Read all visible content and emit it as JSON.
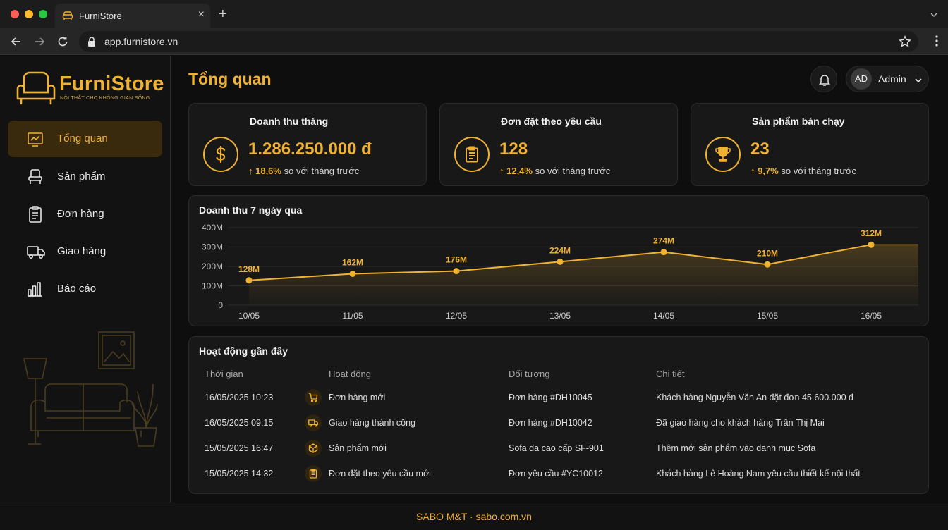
{
  "browser": {
    "tab_title": "FurniStore",
    "tab_close": "×",
    "new_tab": "+",
    "url": "app.furnistore.vn"
  },
  "brand": {
    "name": "FurniStore",
    "tagline": "NỘI THẤT CHO KHÔNG GIAN SỐNG",
    "accent": "#f0b232"
  },
  "sidebar": {
    "items": [
      {
        "label": "Tổng quan",
        "icon": "dashboard-icon",
        "active": true
      },
      {
        "label": "Sản phẩm",
        "icon": "chair-icon"
      },
      {
        "label": "Đơn hàng",
        "icon": "clipboard-icon"
      },
      {
        "label": "Giao hàng",
        "icon": "truck-icon"
      },
      {
        "label": "Báo cáo",
        "icon": "bar-chart-icon"
      }
    ]
  },
  "header": {
    "title": "Tổng quan",
    "user_initials": "AD",
    "user_name": "Admin"
  },
  "stats": [
    {
      "label": "Doanh thu tháng",
      "value": "1.286.250.000 đ",
      "change": "↑ 18,6%",
      "change_text": " so với tháng trước",
      "icon": "dollar-icon"
    },
    {
      "label": "Đơn đặt theo yêu cầu",
      "value": "128",
      "change": "↑ 12,4%",
      "change_text": " so với tháng trước",
      "icon": "clipboard-icon"
    },
    {
      "label": "Sản phẩm bán chạy",
      "value": "23",
      "change": "↑ 9,7%",
      "change_text": " so với tháng trước",
      "icon": "trophy-icon"
    }
  ],
  "chart_data": {
    "type": "line",
    "title": "Doanh thu 7 ngày qua",
    "categories": [
      "10/05",
      "11/05",
      "12/05",
      "13/05",
      "14/05",
      "15/05",
      "16/05"
    ],
    "values": [
      128,
      162,
      176,
      224,
      274,
      210,
      312
    ],
    "labels": [
      "128M",
      "162M",
      "176M",
      "224M",
      "274M",
      "210M",
      "312M"
    ],
    "y_ticks": [
      "0",
      "100M",
      "200M",
      "300M",
      "400M"
    ],
    "ylim": [
      0,
      400
    ],
    "grid": true
  },
  "activity": {
    "title": "Hoạt động gần đây",
    "columns": [
      "Thời gian",
      "Hoạt động",
      "Đối tượng",
      "Chi tiết"
    ],
    "rows": [
      {
        "time": "16/05/2025 10:23",
        "icon": "cart-icon",
        "action": "Đơn hàng mới",
        "target": "Đơn hàng #DH10045",
        "detail": "Khách hàng Nguyễn Văn An đặt đơn 45.600.000 đ"
      },
      {
        "time": "16/05/2025 09:15",
        "icon": "truck-icon",
        "action": "Giao hàng thành công",
        "target": "Đơn hàng #DH10042",
        "detail": "Đã giao hàng cho khách hàng Trần Thị Mai"
      },
      {
        "time": "15/05/2025 16:47",
        "icon": "box-icon",
        "action": "Sản phẩm mới",
        "target": "Sofa da cao cấp SF-901",
        "detail": "Thêm mới sản phẩm vào danh mục Sofa"
      },
      {
        "time": "15/05/2025 14:32",
        "icon": "clipboard-icon",
        "action": "Đơn đặt theo yêu cầu mới",
        "target": "Đơn yêu cầu #YC10012",
        "detail": "Khách hàng Lê Hoàng Nam yêu cầu thiết kế nội thất"
      }
    ]
  },
  "footer": {
    "text": "SABO M&T · sabo.com.vn"
  }
}
